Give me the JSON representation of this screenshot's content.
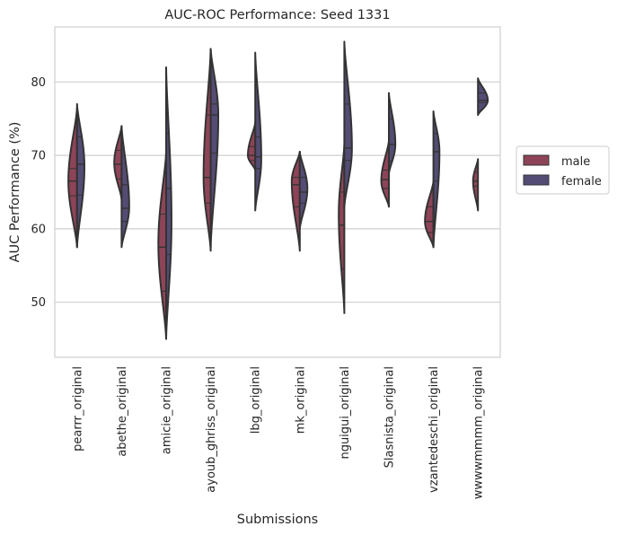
{
  "chart_data": {
    "type": "violin",
    "title": "AUC-ROC Performance: Seed 1331",
    "xlabel": "Submissions",
    "ylabel": "AUC Performance (%)",
    "ylim": [
      42.5,
      87.5
    ],
    "yticks": [
      50,
      60,
      70,
      80
    ],
    "grid": "horizontal",
    "legend_position": "outside-right",
    "split": true,
    "inner": "quartile",
    "series": [
      {
        "name": "male",
        "color": "#8e4458"
      },
      {
        "name": "female",
        "color": "#544c74"
      }
    ],
    "categories": [
      {
        "name": "pearrr_original",
        "male": {
          "min": 57.5,
          "max": 76.5,
          "mode": 66.5,
          "width": 0.39,
          "q1": 64.5,
          "median": 66.5,
          "q3": 68.2
        },
        "female": {
          "min": 57.5,
          "max": 77.0,
          "mode": 68.5,
          "width": 0.33,
          "q1": 64.6,
          "median": 68.8,
          "q3": 72.5
        }
      },
      {
        "name": "abethe_original",
        "male": {
          "min": 64.0,
          "max": 74.0,
          "mode": 69.0,
          "width": 0.33,
          "q1": 66.8,
          "median": 68.8,
          "q3": 70.7
        },
        "female": {
          "min": 57.5,
          "max": 74.0,
          "mode": 63.0,
          "width": 0.34,
          "q1": 61.0,
          "median": 62.8,
          "q3": 66.0
        }
      },
      {
        "name": "amicie_original",
        "male": {
          "min": 45.0,
          "max": 70.5,
          "mode": 58.0,
          "width": 0.35,
          "q1": 51.5,
          "median": 57.5,
          "q3": 62.0
        },
        "female": {
          "min": 45.0,
          "max": 82.0,
          "mode": 61.0,
          "width": 0.24,
          "q1": 56.5,
          "median": 65.5,
          "q3": 73.0
        }
      },
      {
        "name": "ayoub_ghriss_original",
        "male": {
          "min": 57.0,
          "max": 84.5,
          "mode": 67.0,
          "width": 0.32,
          "q1": 63.5,
          "median": 67.0,
          "q3": 75.5
        },
        "female": {
          "min": 57.5,
          "max": 84.5,
          "mode": 75.5,
          "width": 0.34,
          "q1": 70.3,
          "median": 75.5,
          "q3": 77.0
        }
      },
      {
        "name": "lbg_original",
        "male": {
          "min": 68.0,
          "max": 74.5,
          "mode": 70.0,
          "width": 0.33,
          "q1": 69.3,
          "median": 70.0,
          "q3": 71.2
        },
        "female": {
          "min": 62.5,
          "max": 84.0,
          "mode": 69.5,
          "width": 0.27,
          "q1": 68.2,
          "median": 69.8,
          "q3": 72.5
        }
      },
      {
        "name": "mk_original",
        "male": {
          "min": 57.0,
          "max": 70.5,
          "mode": 66.5,
          "width": 0.36,
          "q1": 63.0,
          "median": 66.0,
          "q3": 67.0
        },
        "female": {
          "min": 60.0,
          "max": 70.5,
          "mode": 65.5,
          "width": 0.34,
          "q1": 63.5,
          "median": 65.0,
          "q3": 67.0
        }
      },
      {
        "name": "nguigui_original",
        "male": {
          "min": 48.5,
          "max": 71.5,
          "mode": 62.0,
          "width": 0.25,
          "q1": 54.5,
          "median": 60.5,
          "q3": 65.0
        },
        "female": {
          "min": 63.0,
          "max": 85.5,
          "mode": 71.0,
          "width": 0.34,
          "q1": 69.3,
          "median": 71.0,
          "q3": 77.0
        }
      },
      {
        "name": "Slasnista_original",
        "male": {
          "min": 63.0,
          "max": 72.0,
          "mode": 66.5,
          "width": 0.34,
          "q1": 65.5,
          "median": 66.7,
          "q3": 68.0
        },
        "female": {
          "min": 67.5,
          "max": 78.5,
          "mode": 71.5,
          "width": 0.29,
          "q1": 69.2,
          "median": 71.5,
          "q3": 75.0
        }
      },
      {
        "name": "vzantedeschi_original",
        "male": {
          "min": 57.5,
          "max": 66.5,
          "mode": 61.0,
          "width": 0.38,
          "q1": 59.5,
          "median": 61.0,
          "q3": 63.0
        },
        "female": {
          "min": 57.5,
          "max": 76.0,
          "mode": 70.5,
          "width": 0.27,
          "q1": 66.5,
          "median": 70.5,
          "q3": 73.0
        }
      },
      {
        "name": "wwwwmmmm_original",
        "male": {
          "min": 62.5,
          "max": 69.5,
          "mode": 66.5,
          "width": 0.22,
          "q1": 65.8,
          "median": 66.5,
          "q3": 67.7
        },
        "female": {
          "min": 75.5,
          "max": 80.5,
          "mode": 77.5,
          "width": 0.44,
          "q1": 77.2,
          "median": 77.5,
          "q3": 78.5
        }
      }
    ]
  }
}
